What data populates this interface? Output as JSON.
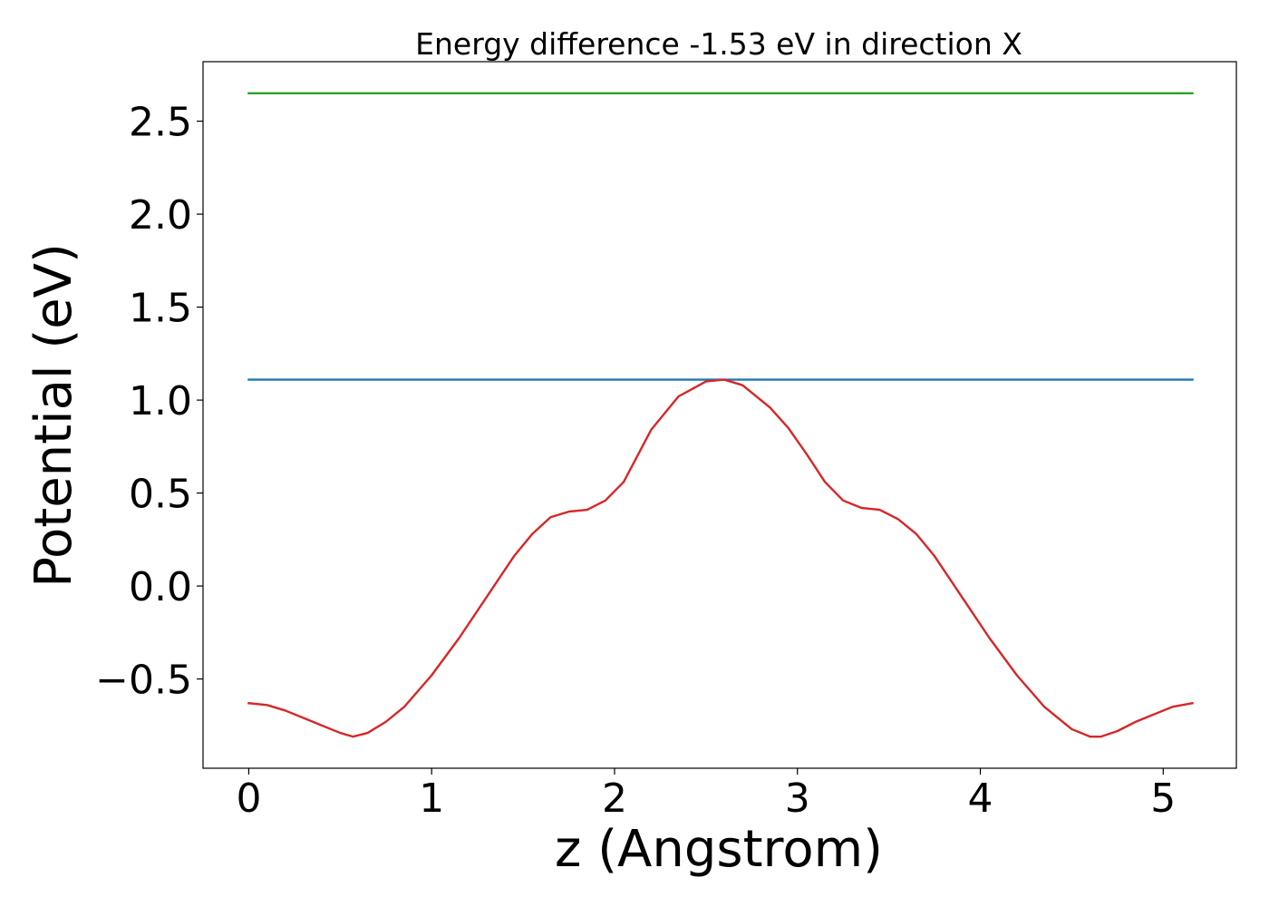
{
  "chart_data": {
    "type": "line",
    "title": "Energy difference -1.53 eV in direction X",
    "xlabel": "z (Angstrom)",
    "ylabel": "Potential (eV)",
    "xlim": [
      -0.25,
      5.4
    ],
    "ylim": [
      -0.98,
      2.82
    ],
    "xticks": [
      0,
      1,
      2,
      3,
      4,
      5
    ],
    "xtick_labels": [
      "0",
      "1",
      "2",
      "3",
      "4",
      "5"
    ],
    "yticks": [
      -0.5,
      0.0,
      0.5,
      1.0,
      1.5,
      2.0,
      2.5
    ],
    "ytick_labels": [
      "−0.5",
      "0.0",
      "0.5",
      "1.0",
      "1.5",
      "2.0",
      "2.5"
    ],
    "grid": false,
    "series": [
      {
        "color": "#2ca02c",
        "x": [
          0.0,
          5.16
        ],
        "y": [
          2.65,
          2.65
        ]
      },
      {
        "color": "#1f77b4",
        "x": [
          0.0,
          5.16
        ],
        "y": [
          1.11,
          1.11
        ]
      },
      {
        "color": "#d62728",
        "x": [
          0.0,
          0.1,
          0.2,
          0.3,
          0.4,
          0.5,
          0.57,
          0.65,
          0.75,
          0.85,
          1.0,
          1.15,
          1.3,
          1.45,
          1.55,
          1.65,
          1.75,
          1.85,
          1.95,
          2.05,
          2.2,
          2.35,
          2.5,
          2.6,
          2.7,
          2.85,
          2.95,
          3.05,
          3.15,
          3.25,
          3.35,
          3.45,
          3.55,
          3.65,
          3.75,
          3.9,
          4.05,
          4.2,
          4.35,
          4.5,
          4.6,
          4.66,
          4.75,
          4.85,
          4.95,
          5.05,
          5.16
        ],
        "y": [
          -0.63,
          -0.64,
          -0.67,
          -0.71,
          -0.75,
          -0.79,
          -0.81,
          -0.79,
          -0.73,
          -0.65,
          -0.48,
          -0.28,
          -0.06,
          0.16,
          0.28,
          0.37,
          0.4,
          0.41,
          0.46,
          0.56,
          0.84,
          1.02,
          1.1,
          1.11,
          1.08,
          0.96,
          0.85,
          0.71,
          0.56,
          0.46,
          0.42,
          0.41,
          0.36,
          0.28,
          0.16,
          -0.06,
          -0.28,
          -0.48,
          -0.65,
          -0.77,
          -0.81,
          -0.81,
          -0.78,
          -0.73,
          -0.69,
          -0.65,
          -0.63
        ]
      }
    ]
  }
}
